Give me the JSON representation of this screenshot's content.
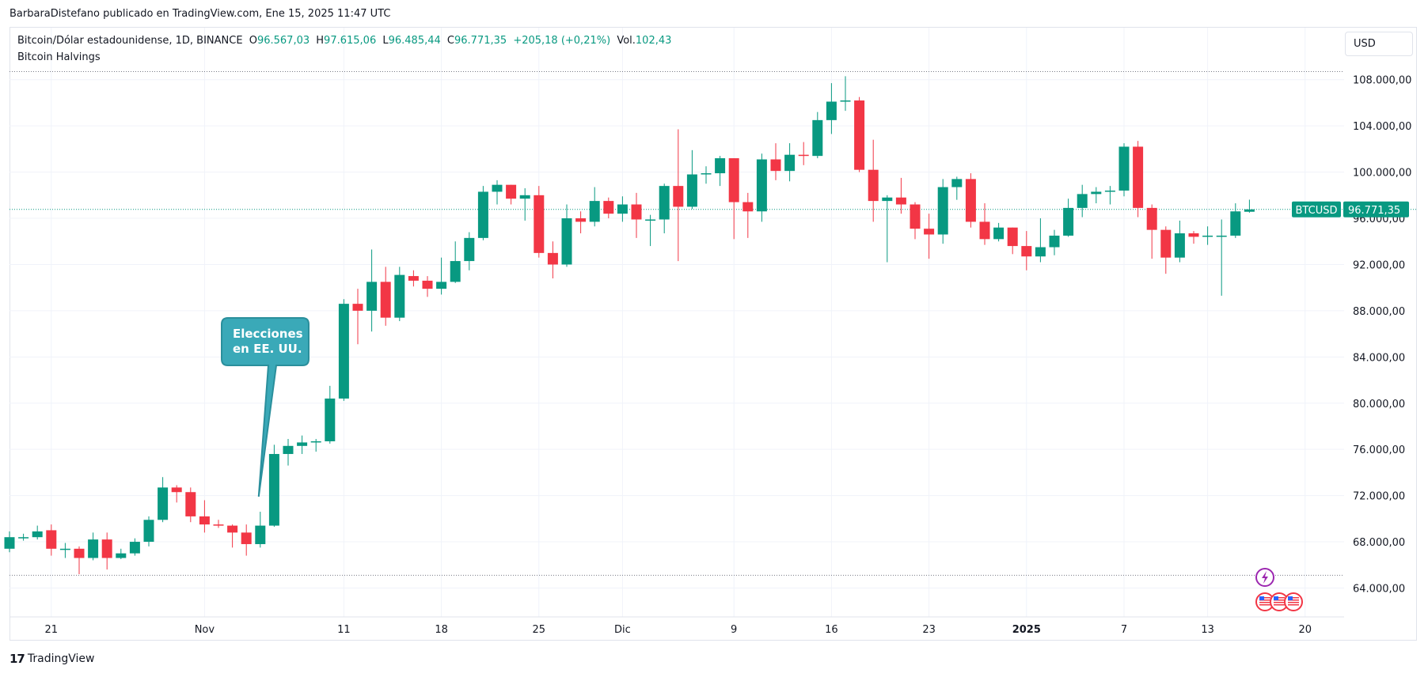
{
  "publisher_line": "BarbaraDistefano publicado en TradingView.com, Ene 15, 2025 11:47 UTC",
  "legend": {
    "symbol": "Bitcoin/Dólar estadounidense, 1D, BINANCE",
    "open_label": "O",
    "open": "96.567,03",
    "high_label": "H",
    "high": "97.615,06",
    "low_label": "L",
    "low": "96.485,44",
    "close_label": "C",
    "close": "96.771,35",
    "change": "+205,18 (+0,21%)",
    "vol_label": "Vol.",
    "vol": "102,43"
  },
  "indicator_name": "Bitcoin Halvings",
  "currency": "USD",
  "footer": {
    "brand": "TradingView",
    "brand_mark": "17"
  },
  "price_tag": {
    "symbol": "BTCUSD",
    "price": "96.771,35"
  },
  "annotation": {
    "line1": "Elecciones",
    "line2": "en EE. UU."
  },
  "icons": {
    "lightning": "lightning-icon",
    "us_flag_events": "us-flag-icon"
  },
  "colors": {
    "up": "#089981",
    "down": "#f23645",
    "annotation": "#3aa9b8",
    "annotation_border": "#2a8f9c",
    "price_line": "#089981"
  },
  "chart_data": {
    "type": "candlestick",
    "y_axis": {
      "ticks": [
        "64.000,00",
        "68.000,00",
        "72.000,00",
        "76.000,00",
        "80.000,00",
        "84.000,00",
        "88.000,00",
        "92.000,00",
        "96.000,00",
        "100.000,00",
        "104.000,00",
        "108.000,00"
      ],
      "tick_values": [
        64000,
        68000,
        72000,
        76000,
        80000,
        84000,
        88000,
        92000,
        96000,
        100000,
        104000,
        108000
      ],
      "range": [
        61500,
        112500
      ],
      "dotted_levels": [
        108700,
        65100
      ]
    },
    "x_axis": {
      "ticks": [
        {
          "label": "21",
          "index": 3,
          "bold": false
        },
        {
          "label": "Nov",
          "index": 14,
          "bold": false
        },
        {
          "label": "11",
          "index": 24,
          "bold": false
        },
        {
          "label": "18",
          "index": 31,
          "bold": false
        },
        {
          "label": "25",
          "index": 38,
          "bold": false
        },
        {
          "label": "Dic",
          "index": 44,
          "bold": false
        },
        {
          "label": "9",
          "index": 52,
          "bold": false
        },
        {
          "label": "16",
          "index": 59,
          "bold": false
        },
        {
          "label": "23",
          "index": 66,
          "bold": false
        },
        {
          "label": "2025",
          "index": 73,
          "bold": true
        },
        {
          "label": "7",
          "index": 80,
          "bold": false
        },
        {
          "label": "13",
          "index": 86,
          "bold": false
        },
        {
          "label": "20",
          "index": 93,
          "bold": false
        }
      ]
    },
    "candles": [
      {
        "date": "2024-10-18",
        "o": 67400,
        "h": 68900,
        "l": 67100,
        "c": 68400
      },
      {
        "date": "2024-10-19",
        "o": 68400,
        "h": 68700,
        "l": 68100,
        "c": 68400
      },
      {
        "date": "2024-10-20",
        "o": 68400,
        "h": 69400,
        "l": 68200,
        "c": 68900
      },
      {
        "date": "2024-10-21",
        "o": 69000,
        "h": 69500,
        "l": 66800,
        "c": 67400
      },
      {
        "date": "2024-10-22",
        "o": 67400,
        "h": 67900,
        "l": 66600,
        "c": 67400
      },
      {
        "date": "2024-10-23",
        "o": 67400,
        "h": 67600,
        "l": 65200,
        "c": 66600
      },
      {
        "date": "2024-10-24",
        "o": 66600,
        "h": 68800,
        "l": 66400,
        "c": 68200
      },
      {
        "date": "2024-10-25",
        "o": 68200,
        "h": 68800,
        "l": 65600,
        "c": 66600
      },
      {
        "date": "2024-10-26",
        "o": 66600,
        "h": 67400,
        "l": 66500,
        "c": 67000
      },
      {
        "date": "2024-10-27",
        "o": 67000,
        "h": 68300,
        "l": 66800,
        "c": 68000
      },
      {
        "date": "2024-10-28",
        "o": 68000,
        "h": 70200,
        "l": 67600,
        "c": 69900
      },
      {
        "date": "2024-10-29",
        "o": 69900,
        "h": 73600,
        "l": 69700,
        "c": 72700
      },
      {
        "date": "2024-10-30",
        "o": 72700,
        "h": 72900,
        "l": 71400,
        "c": 72300
      },
      {
        "date": "2024-10-31",
        "o": 72300,
        "h": 72700,
        "l": 69700,
        "c": 70200
      },
      {
        "date": "2024-11-01",
        "o": 70200,
        "h": 71600,
        "l": 68800,
        "c": 69500
      },
      {
        "date": "2024-11-02",
        "o": 69500,
        "h": 69900,
        "l": 69200,
        "c": 69400
      },
      {
        "date": "2024-11-03",
        "o": 69400,
        "h": 69500,
        "l": 67500,
        "c": 68800
      },
      {
        "date": "2024-11-04",
        "o": 68800,
        "h": 69500,
        "l": 66800,
        "c": 67800
      },
      {
        "date": "2024-11-05",
        "o": 67800,
        "h": 70600,
        "l": 67500,
        "c": 69400
      },
      {
        "date": "2024-11-06",
        "o": 69400,
        "h": 76400,
        "l": 69300,
        "c": 75600
      },
      {
        "date": "2024-11-07",
        "o": 75600,
        "h": 76900,
        "l": 74600,
        "c": 76300
      },
      {
        "date": "2024-11-08",
        "o": 76300,
        "h": 77200,
        "l": 75600,
        "c": 76600
      },
      {
        "date": "2024-11-09",
        "o": 76600,
        "h": 76900,
        "l": 75800,
        "c": 76700
      },
      {
        "date": "2024-11-10",
        "o": 76700,
        "h": 81500,
        "l": 76500,
        "c": 80400
      },
      {
        "date": "2024-11-11",
        "o": 80400,
        "h": 89000,
        "l": 80200,
        "c": 88600
      },
      {
        "date": "2024-11-12",
        "o": 88600,
        "h": 89900,
        "l": 85100,
        "c": 88000
      },
      {
        "date": "2024-11-13",
        "o": 88000,
        "h": 93300,
        "l": 86200,
        "c": 90500
      },
      {
        "date": "2024-11-14",
        "o": 90500,
        "h": 91800,
        "l": 86700,
        "c": 87400
      },
      {
        "date": "2024-11-15",
        "o": 87400,
        "h": 91800,
        "l": 87100,
        "c": 91100
      },
      {
        "date": "2024-11-16",
        "o": 91000,
        "h": 91500,
        "l": 90100,
        "c": 90600
      },
      {
        "date": "2024-11-17",
        "o": 90600,
        "h": 91000,
        "l": 89200,
        "c": 89900
      },
      {
        "date": "2024-11-18",
        "o": 89900,
        "h": 92600,
        "l": 89400,
        "c": 90500
      },
      {
        "date": "2024-11-19",
        "o": 90500,
        "h": 94000,
        "l": 90400,
        "c": 92300
      },
      {
        "date": "2024-11-20",
        "o": 92300,
        "h": 94800,
        "l": 91500,
        "c": 94300
      },
      {
        "date": "2024-11-21",
        "o": 94300,
        "h": 98800,
        "l": 94100,
        "c": 98300
      },
      {
        "date": "2024-11-22",
        "o": 98300,
        "h": 99300,
        "l": 97200,
        "c": 98900
      },
      {
        "date": "2024-11-23",
        "o": 98900,
        "h": 98900,
        "l": 97200,
        "c": 97700
      },
      {
        "date": "2024-11-24",
        "o": 97700,
        "h": 98600,
        "l": 95800,
        "c": 98000
      },
      {
        "date": "2024-11-25",
        "o": 98000,
        "h": 98800,
        "l": 92600,
        "c": 93000
      },
      {
        "date": "2024-11-26",
        "o": 93000,
        "h": 94000,
        "l": 90800,
        "c": 92000
      },
      {
        "date": "2024-11-27",
        "o": 92000,
        "h": 97200,
        "l": 91800,
        "c": 96000
      },
      {
        "date": "2024-11-28",
        "o": 96000,
        "h": 96600,
        "l": 94700,
        "c": 95700
      },
      {
        "date": "2024-11-29",
        "o": 95700,
        "h": 98700,
        "l": 95300,
        "c": 97500
      },
      {
        "date": "2024-11-30",
        "o": 97500,
        "h": 97800,
        "l": 96000,
        "c": 96400
      },
      {
        "date": "2024-12-01",
        "o": 96400,
        "h": 97900,
        "l": 95700,
        "c": 97200
      },
      {
        "date": "2024-12-02",
        "o": 97200,
        "h": 98200,
        "l": 94300,
        "c": 95900
      },
      {
        "date": "2024-12-03",
        "o": 95900,
        "h": 96300,
        "l": 93600,
        "c": 95900
      },
      {
        "date": "2024-12-04",
        "o": 95900,
        "h": 99000,
        "l": 94700,
        "c": 98800
      },
      {
        "date": "2024-12-05",
        "o": 98800,
        "h": 103700,
        "l": 92300,
        "c": 97000
      },
      {
        "date": "2024-12-06",
        "o": 97000,
        "h": 101900,
        "l": 96800,
        "c": 99800
      },
      {
        "date": "2024-12-07",
        "o": 99800,
        "h": 100500,
        "l": 99000,
        "c": 99900
      },
      {
        "date": "2024-12-08",
        "o": 99900,
        "h": 101400,
        "l": 98800,
        "c": 101200
      },
      {
        "date": "2024-12-09",
        "o": 101200,
        "h": 101200,
        "l": 94200,
        "c": 97400
      },
      {
        "date": "2024-12-10",
        "o": 97400,
        "h": 98200,
        "l": 94300,
        "c": 96600
      },
      {
        "date": "2024-12-11",
        "o": 96600,
        "h": 101600,
        "l": 95700,
        "c": 101100
      },
      {
        "date": "2024-12-12",
        "o": 101100,
        "h": 102500,
        "l": 99300,
        "c": 100100
      },
      {
        "date": "2024-12-13",
        "o": 100100,
        "h": 102500,
        "l": 99200,
        "c": 101500
      },
      {
        "date": "2024-12-14",
        "o": 101500,
        "h": 102600,
        "l": 100600,
        "c": 101400
      },
      {
        "date": "2024-12-15",
        "o": 101400,
        "h": 105200,
        "l": 101200,
        "c": 104500
      },
      {
        "date": "2024-12-16",
        "o": 104500,
        "h": 107700,
        "l": 103300,
        "c": 106100
      },
      {
        "date": "2024-12-17",
        "o": 106100,
        "h": 108300,
        "l": 105300,
        "c": 106200
      },
      {
        "date": "2024-12-18",
        "o": 106200,
        "h": 106500,
        "l": 100000,
        "c": 100200
      },
      {
        "date": "2024-12-19",
        "o": 100200,
        "h": 102800,
        "l": 95700,
        "c": 97500
      },
      {
        "date": "2024-12-20",
        "o": 97500,
        "h": 98000,
        "l": 92200,
        "c": 97800
      },
      {
        "date": "2024-12-21",
        "o": 97800,
        "h": 99500,
        "l": 96400,
        "c": 97200
      },
      {
        "date": "2024-12-22",
        "o": 97200,
        "h": 97400,
        "l": 94200,
        "c": 95100
      },
      {
        "date": "2024-12-23",
        "o": 95100,
        "h": 96400,
        "l": 92500,
        "c": 94600
      },
      {
        "date": "2024-12-24",
        "o": 94600,
        "h": 99400,
        "l": 93800,
        "c": 98700
      },
      {
        "date": "2024-12-25",
        "o": 98700,
        "h": 99600,
        "l": 97600,
        "c": 99400
      },
      {
        "date": "2024-12-26",
        "o": 99400,
        "h": 99900,
        "l": 95200,
        "c": 95700
      },
      {
        "date": "2024-12-27",
        "o": 95700,
        "h": 97300,
        "l": 93700,
        "c": 94200
      },
      {
        "date": "2024-12-28",
        "o": 94200,
        "h": 95600,
        "l": 94000,
        "c": 95200
      },
      {
        "date": "2024-12-29",
        "o": 95200,
        "h": 95200,
        "l": 92900,
        "c": 93600
      },
      {
        "date": "2024-12-30",
        "o": 93600,
        "h": 94900,
        "l": 91500,
        "c": 92700
      },
      {
        "date": "2024-12-31",
        "o": 92700,
        "h": 96000,
        "l": 92200,
        "c": 93500
      },
      {
        "date": "2025-01-01",
        "o": 93500,
        "h": 95000,
        "l": 92800,
        "c": 94500
      },
      {
        "date": "2025-01-02",
        "o": 94500,
        "h": 97700,
        "l": 94400,
        "c": 96900
      },
      {
        "date": "2025-01-03",
        "o": 96900,
        "h": 98900,
        "l": 96100,
        "c": 98100
      },
      {
        "date": "2025-01-04",
        "o": 98100,
        "h": 98700,
        "l": 97300,
        "c": 98300
      },
      {
        "date": "2025-01-05",
        "o": 98300,
        "h": 98800,
        "l": 97200,
        "c": 98400
      },
      {
        "date": "2025-01-06",
        "o": 98400,
        "h": 102500,
        "l": 97900,
        "c": 102200
      },
      {
        "date": "2025-01-07",
        "o": 102200,
        "h": 102700,
        "l": 96100,
        "c": 96900
      },
      {
        "date": "2025-01-08",
        "o": 96900,
        "h": 97200,
        "l": 92500,
        "c": 95000
      },
      {
        "date": "2025-01-09",
        "o": 95000,
        "h": 95300,
        "l": 91200,
        "c": 92600
      },
      {
        "date": "2025-01-10",
        "o": 92600,
        "h": 95800,
        "l": 92200,
        "c": 94700
      },
      {
        "date": "2025-01-11",
        "o": 94700,
        "h": 94900,
        "l": 93800,
        "c": 94400
      },
      {
        "date": "2025-01-12",
        "o": 94400,
        "h": 95300,
        "l": 93700,
        "c": 94500
      },
      {
        "date": "2025-01-13",
        "o": 94500,
        "h": 95900,
        "l": 89300,
        "c": 94500
      },
      {
        "date": "2025-01-14",
        "o": 94500,
        "h": 97300,
        "l": 94300,
        "c": 96600
      },
      {
        "date": "2025-01-15",
        "o": 96567,
        "h": 97615,
        "l": 96485,
        "c": 96771
      }
    ],
    "annotation_points_to_date": "2024-11-05",
    "current_price": 96771.35
  }
}
